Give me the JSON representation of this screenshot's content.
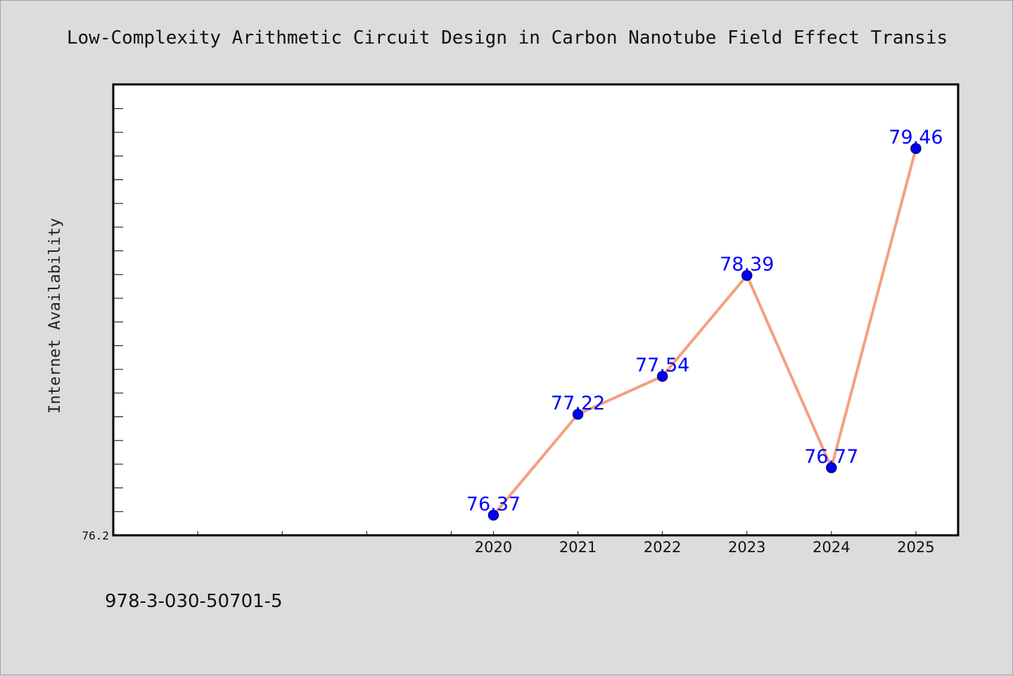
{
  "footer": "978-3-030-50701-5",
  "chart_data": {
    "type": "line",
    "title": "Low-Complexity Arithmetic Circuit Design in Carbon Nanotube Field Effect Transis",
    "ylabel": "Internet Availability",
    "xlabel": "",
    "x": [
      "2020",
      "2021",
      "2022",
      "2023",
      "2024",
      "2025"
    ],
    "series": [
      {
        "values": [
          76.37,
          77.22,
          77.54,
          78.39,
          76.77,
          79.46
        ]
      }
    ],
    "data_labels": [
      "76.37",
      "77.22",
      "77.54",
      "78.39",
      "76.77",
      "79.46"
    ],
    "y_tick_labels": [
      "76.2"
    ],
    "ylim": [
      76.2,
      80.0
    ],
    "x_positions": [
      2016.5,
      2017.5,
      2018.5,
      2019.5,
      2020,
      2021,
      2022,
      2023,
      2024,
      2025
    ],
    "xlim": [
      2015.5,
      2025.5
    ],
    "grid": false,
    "legend": "none",
    "colors": {
      "line": "#f4a07f",
      "marker": "#0000ee",
      "marker_edge": "#00008b",
      "data_label": "#0000ff",
      "background": "#dcdcdc",
      "plot_background": "#ffffff"
    }
  }
}
